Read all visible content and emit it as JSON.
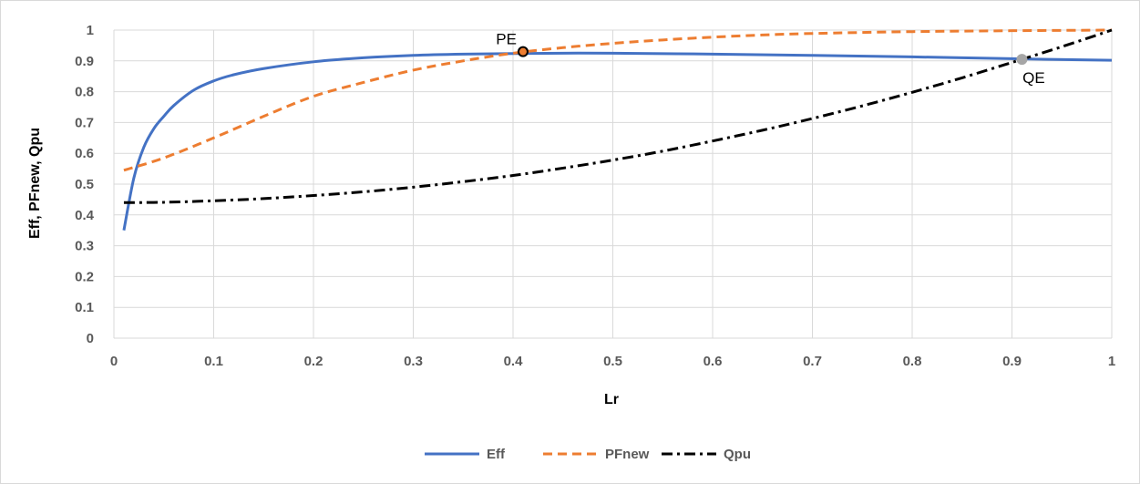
{
  "chart_data": {
    "type": "line",
    "title": "",
    "xlabel": "Lr",
    "ylabel": "Eff, PFnew, Qpu",
    "xlim": [
      0,
      1
    ],
    "ylim": [
      0,
      1
    ],
    "x_ticks": [
      "0",
      "0.1",
      "0.2",
      "0.3",
      "0.4",
      "0.5",
      "0.6",
      "0.7",
      "0.8",
      "0.9",
      "1"
    ],
    "y_ticks": [
      "0",
      "0.1",
      "0.2",
      "0.3",
      "0.4",
      "0.5",
      "0.6",
      "0.7",
      "0.8",
      "0.9",
      "1"
    ],
    "grid": true,
    "legend_position": "bottom",
    "series": [
      {
        "name": "Eff",
        "color": "#4472c4",
        "style": "solid",
        "x": [
          0.01,
          0.02,
          0.03,
          0.04,
          0.05,
          0.06,
          0.08,
          0.1,
          0.12,
          0.15,
          0.2,
          0.25,
          0.3,
          0.35,
          0.4,
          0.45,
          0.5,
          0.6,
          0.7,
          0.8,
          0.9,
          1.0
        ],
        "y": [
          0.35,
          0.52,
          0.62,
          0.68,
          0.72,
          0.755,
          0.805,
          0.835,
          0.855,
          0.875,
          0.897,
          0.91,
          0.918,
          0.922,
          0.924,
          0.925,
          0.925,
          0.922,
          0.918,
          0.913,
          0.907,
          0.902
        ]
      },
      {
        "name": "PFnew",
        "color": "#ed7d31",
        "style": "dashed",
        "x": [
          0.01,
          0.05,
          0.1,
          0.15,
          0.2,
          0.25,
          0.3,
          0.35,
          0.4,
          0.45,
          0.5,
          0.55,
          0.6,
          0.65,
          0.7,
          0.8,
          0.9,
          1.0
        ],
        "y": [
          0.545,
          0.585,
          0.65,
          0.72,
          0.785,
          0.83,
          0.87,
          0.9,
          0.925,
          0.943,
          0.957,
          0.968,
          0.977,
          0.984,
          0.989,
          0.995,
          0.998,
          1.0
        ]
      },
      {
        "name": "Qpu",
        "color": "#000000",
        "style": "dash-dot",
        "x": [
          0.01,
          0.05,
          0.1,
          0.15,
          0.2,
          0.25,
          0.3,
          0.35,
          0.4,
          0.45,
          0.5,
          0.55,
          0.6,
          0.65,
          0.7,
          0.75,
          0.8,
          0.85,
          0.9,
          0.95,
          1.0
        ],
        "y": [
          0.44,
          0.441,
          0.446,
          0.453,
          0.463,
          0.475,
          0.49,
          0.508,
          0.528,
          0.552,
          0.578,
          0.607,
          0.64,
          0.675,
          0.713,
          0.754,
          0.798,
          0.845,
          0.895,
          0.946,
          1.0
        ]
      }
    ],
    "annotations": [
      {
        "label": "PE",
        "x": 0.41,
        "y": 0.93,
        "marker_fill": "#ed7d31",
        "marker_stroke": "#000000"
      },
      {
        "label": "QE",
        "x": 0.91,
        "y": 0.905,
        "marker_fill": "#a6a6a6",
        "marker_stroke": "#a6a6a6"
      }
    ]
  }
}
